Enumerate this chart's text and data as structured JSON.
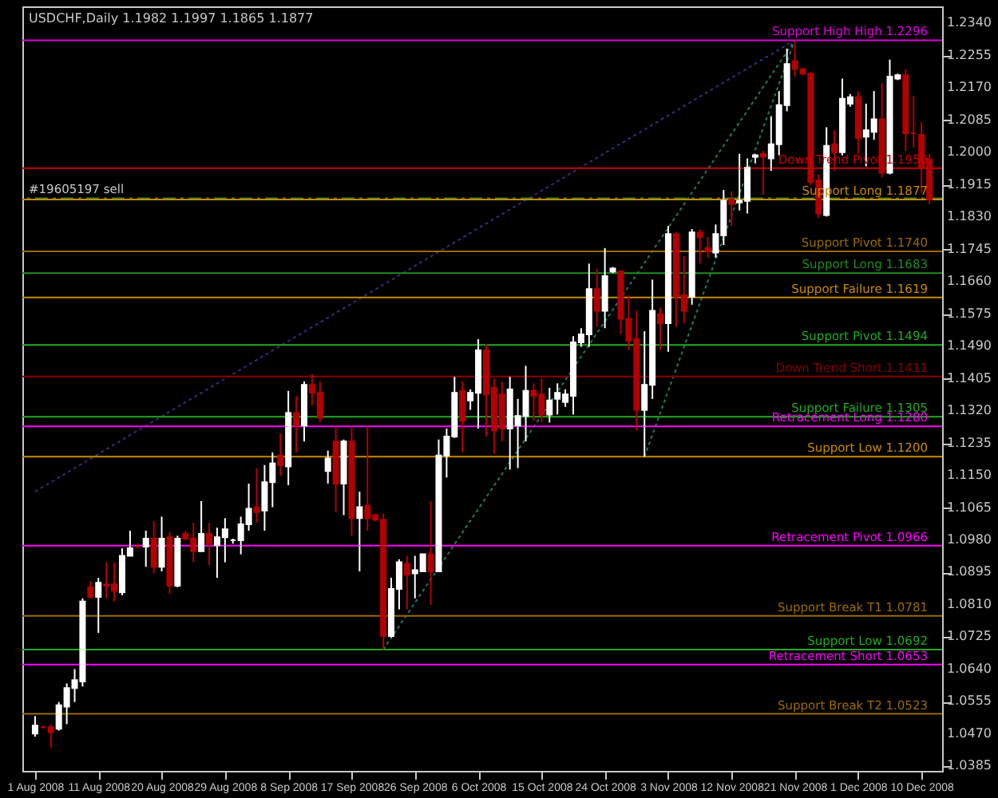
{
  "chart_data": {
    "type": "candlestick",
    "title": "USDCHF,Daily  1.1982 1.1997 1.1865 1.1877",
    "categories": [
      "1 Aug 2008",
      null,
      null,
      null,
      null,
      null,
      null,
      null,
      "11 Aug 2008",
      null,
      null,
      null,
      null,
      null,
      null,
      null,
      "20 Aug 2008",
      null,
      null,
      null,
      null,
      null,
      null,
      null,
      "29 Aug 2008",
      null,
      null,
      null,
      null,
      null,
      null,
      null,
      "8 Sep 2008",
      null,
      null,
      null,
      null,
      null,
      null,
      null,
      "17 Sep 2008",
      null,
      null,
      null,
      null,
      null,
      null,
      null,
      "26 Sep 2008",
      null,
      null,
      null,
      null,
      null,
      null,
      null,
      "6 Oct 2008",
      null,
      null,
      null,
      null,
      null,
      null,
      null,
      "15 Oct 2008",
      null,
      null,
      null,
      null,
      null,
      null,
      null,
      "24 Oct 2008",
      null,
      null,
      null,
      null,
      null,
      null,
      null,
      "3 Nov 2008",
      null,
      null,
      null,
      null,
      null,
      null,
      null,
      "12 Nov 2008",
      null,
      null,
      null,
      null,
      null,
      null,
      null,
      "21 Nov 2008",
      null,
      null,
      null,
      null,
      null,
      null,
      null,
      "1 Dec 2008",
      null,
      null,
      null,
      null,
      null,
      null,
      null,
      "10 Dec 2008",
      null
    ],
    "ohlc": [
      [
        1.0471,
        1.0517,
        1.0463,
        1.0492
      ],
      [
        1.0488,
        1.0492,
        1.0484,
        1.0488
      ],
      [
        1.0488,
        1.0496,
        1.0434,
        1.0475
      ],
      [
        1.0484,
        1.0554,
        1.0479,
        1.0546
      ],
      [
        1.0542,
        1.0603,
        1.0496,
        1.0591
      ],
      [
        1.0591,
        1.0641,
        1.0554,
        1.0612
      ],
      [
        1.0608,
        1.0827,
        1.0595,
        1.0819
      ],
      [
        1.0856,
        1.0872,
        1.0827,
        1.0831
      ],
      [
        1.0831,
        1.0881,
        1.0736,
        1.0868
      ],
      [
        1.0864,
        1.0922,
        1.0827,
        1.086
      ],
      [
        1.0864,
        1.0922,
        1.0819,
        1.0847
      ],
      [
        1.0843,
        1.0959,
        1.0835,
        1.0939
      ],
      [
        1.0939,
        1.1005,
        1.0939,
        1.0959
      ],
      [
        1.0963,
        1.0971,
        1.0959,
        1.0963
      ],
      [
        1.0963,
        1.1005,
        1.091,
        1.0984
      ],
      [
        1.0984,
        1.103,
        1.0893,
        1.091
      ],
      [
        1.091,
        1.1042,
        1.0898,
        1.0984
      ],
      [
        1.0988,
        1.1001,
        1.0839,
        1.086
      ],
      [
        1.086,
        1.0992,
        1.0856,
        1.0984
      ],
      [
        1.0997,
        1.1005,
        1.098,
        1.0984
      ],
      [
        1.0984,
        1.1026,
        1.0922,
        1.0951
      ],
      [
        1.0951,
        1.1083,
        1.0951,
        1.0997
      ],
      [
        1.0997,
        1.1026,
        1.0914,
        1.0971
      ],
      [
        1.0967,
        1.1013,
        1.0881,
        1.0988
      ],
      [
        1.0988,
        1.1038,
        1.0922,
        1.1009
      ],
      [
        1.098,
        1.0984,
        1.0971,
        1.098
      ],
      [
        1.098,
        1.1042,
        1.0943,
        1.1022
      ],
      [
        1.1022,
        1.1129,
        1.1005,
        1.1063
      ],
      [
        1.1067,
        1.117,
        1.1026,
        1.1054
      ],
      [
        1.1058,
        1.1178,
        1.1005,
        1.1133
      ],
      [
        1.1133,
        1.1211,
        1.1067,
        1.1182
      ],
      [
        1.1203,
        1.1261,
        1.115,
        1.1178
      ],
      [
        1.1174,
        1.1373,
        1.1125,
        1.1315
      ],
      [
        1.1315,
        1.136,
        1.1211,
        1.1282
      ],
      [
        1.1282,
        1.1398,
        1.124,
        1.1389
      ],
      [
        1.1389,
        1.1418,
        1.1335,
        1.1368
      ],
      [
        1.1368,
        1.1398,
        1.129,
        1.1302
      ],
      [
        1.1162,
        1.1216,
        1.1129,
        1.1195
      ],
      [
        1.124,
        1.1282,
        1.1054,
        1.1129
      ],
      [
        1.1129,
        1.1245,
        1.1046,
        1.124
      ],
      [
        1.124,
        1.1282,
        1.0992,
        1.1038
      ],
      [
        1.1038,
        1.1108,
        1.0898,
        1.1067
      ],
      [
        1.1071,
        1.1282,
        1.1005,
        1.1038
      ],
      [
        1.1046,
        1.105,
        1.103,
        1.1034
      ],
      [
        1.1034,
        1.105,
        1.0692,
        1.0728
      ],
      [
        1.0728,
        1.0881,
        1.0724,
        1.0852
      ],
      [
        1.0852,
        1.093,
        1.0798,
        1.0922
      ],
      [
        1.0918,
        1.0939,
        1.0798,
        1.0889
      ],
      [
        1.0893,
        1.0939,
        1.0827,
        1.0901
      ],
      [
        1.0898,
        1.0943,
        1.0898,
        1.0943
      ],
      [
        1.0943,
        1.1083,
        1.081,
        1.0898
      ],
      [
        1.0898,
        1.1245,
        1.0898,
        1.1203
      ],
      [
        1.1203,
        1.1274,
        1.1145,
        1.1253
      ],
      [
        1.1253,
        1.141,
        1.1249,
        1.1368
      ],
      [
        1.1373,
        1.1398,
        1.1211,
        1.1294
      ],
      [
        1.1348,
        1.1377,
        1.1323,
        1.1368
      ],
      [
        1.1368,
        1.1509,
        1.1274,
        1.148
      ],
      [
        1.148,
        1.1497,
        1.1253,
        1.1364
      ],
      [
        1.1381,
        1.1406,
        1.1207,
        1.1269
      ],
      [
        1.1364,
        1.1398,
        1.124,
        1.1274
      ],
      [
        1.1274,
        1.141,
        1.1166,
        1.1377
      ],
      [
        1.1282,
        1.1352,
        1.117,
        1.1307
      ],
      [
        1.1307,
        1.1439,
        1.124,
        1.1373
      ],
      [
        1.1373,
        1.1393,
        1.1294,
        1.136
      ],
      [
        1.1364,
        1.1406,
        1.129,
        1.1311
      ],
      [
        1.1311,
        1.1381,
        1.129,
        1.1348
      ],
      [
        1.1352,
        1.1393,
        1.1311,
        1.1368
      ],
      [
        1.1344,
        1.1377,
        1.1331,
        1.1364
      ],
      [
        1.136,
        1.1517,
        1.1311,
        1.1501
      ],
      [
        1.1501,
        1.1538,
        1.1489,
        1.1522
      ],
      [
        1.1522,
        1.1708,
        1.1489,
        1.1641
      ],
      [
        1.1641,
        1.1695,
        1.1542,
        1.1584
      ],
      [
        1.1584,
        1.1749,
        1.1538,
        1.1675
      ],
      [
        1.1687,
        1.1699,
        1.1683,
        1.1695
      ],
      [
        1.1687,
        1.1691,
        1.1522,
        1.1563
      ],
      [
        1.1563,
        1.1625,
        1.148,
        1.1505
      ],
      [
        1.1509,
        1.1584,
        1.1269,
        1.1323
      ],
      [
        1.1323,
        1.153,
        1.12,
        1.1389
      ],
      [
        1.1389,
        1.1666,
        1.1352,
        1.1584
      ],
      [
        1.1575,
        1.1592,
        1.148,
        1.1551
      ],
      [
        1.1551,
        1.1807,
        1.1476,
        1.1786
      ],
      [
        1.1786,
        1.179,
        1.1542,
        1.1621
      ],
      [
        1.1625,
        1.1728,
        1.1551,
        1.1584
      ],
      [
        1.1621,
        1.1799,
        1.16,
        1.179
      ],
      [
        1.179,
        1.1799,
        1.1708,
        1.1778
      ],
      [
        1.1749,
        1.1778,
        1.1724,
        1.1741
      ],
      [
        1.1737,
        1.1811,
        1.1724,
        1.1786
      ],
      [
        1.1782,
        1.1902,
        1.1757,
        1.1873
      ],
      [
        1.1877,
        1.1898,
        1.1807,
        1.1865
      ],
      [
        1.1869,
        1.1997,
        1.1848,
        1.1873
      ],
      [
        1.1873,
        1.1985,
        1.184,
        1.196
      ],
      [
        1.1989,
        1.1997,
        1.1972,
        1.1993
      ],
      [
        1.1997,
        1.2005,
        1.189,
        1.1989
      ],
      [
        1.1985,
        1.2096,
        1.1952,
        1.2022
      ],
      [
        1.2022,
        1.2162,
        1.1993,
        1.2125
      ],
      [
        1.2125,
        1.2274,
        1.2109,
        1.2233
      ],
      [
        1.2241,
        1.2296,
        1.22,
        1.222
      ],
      [
        1.222,
        1.222,
        1.2204,
        1.2208
      ],
      [
        1.2208,
        1.2212,
        1.1914,
        1.1923
      ],
      [
        1.1927,
        1.1943,
        1.1828,
        1.184
      ],
      [
        1.1836,
        1.2067,
        1.1832,
        1.2018
      ],
      [
        1.2022,
        1.2059,
        1.1952,
        1.2001
      ],
      [
        1.2001,
        1.2195,
        1.1993,
        1.2142
      ],
      [
        1.2129,
        1.2154,
        1.2121,
        1.2146
      ],
      [
        1.2146,
        1.2162,
        1.1997,
        1.2038
      ],
      [
        1.2042,
        1.2129,
        1.1964,
        1.2059
      ],
      [
        1.2055,
        1.2162,
        1.2034,
        1.2088
      ],
      [
        1.2088,
        1.2183,
        1.1935,
        1.1947
      ],
      [
        1.1947,
        1.2245,
        1.1943,
        1.22
      ],
      [
        1.2195,
        1.2208,
        1.2191,
        1.2204
      ],
      [
        1.2204,
        1.222,
        1.2005,
        1.2051
      ],
      [
        1.2051,
        1.215,
        1.2014,
        1.2051
      ],
      [
        1.2047,
        1.208,
        1.1894,
        1.196
      ],
      [
        1.1982,
        1.1997,
        1.1865,
        1.1877
      ]
    ],
    "colors": [
      "#ffffff",
      "#b40000",
      "#b40000",
      "#ffffff",
      "#ffffff",
      "#ffffff",
      "#ffffff",
      "#b40000",
      "#ffffff",
      "#b40000",
      "#b40000",
      "#ffffff",
      "#ffffff",
      "#b40000",
      "#ffffff",
      "#b40000",
      "#ffffff",
      "#b40000",
      "#ffffff",
      "#b40000",
      "#b40000",
      "#ffffff",
      "#b40000",
      "#ffffff",
      "#ffffff",
      "#ffffff",
      "#ffffff",
      "#ffffff",
      "#b40000",
      "#ffffff",
      "#ffffff",
      "#b40000",
      "#ffffff",
      "#b40000",
      "#ffffff",
      "#b40000",
      "#b40000",
      "#ffffff",
      "#b40000",
      "#ffffff",
      "#b40000",
      "#ffffff",
      "#b40000",
      "#b40000",
      "#b40000",
      "#ffffff",
      "#ffffff",
      "#b40000",
      "#ffffff",
      "#ffffff",
      "#b40000",
      "#ffffff",
      "#ffffff",
      "#ffffff",
      "#b40000",
      "#ffffff",
      "#ffffff",
      "#b40000",
      "#b40000",
      "#b40000",
      "#ffffff",
      "#ffffff",
      "#ffffff",
      "#b40000",
      "#b40000",
      "#ffffff",
      "#ffffff",
      "#ffffff",
      "#ffffff",
      "#ffffff",
      "#ffffff",
      "#b40000",
      "#ffffff",
      "#ffffff",
      "#b40000",
      "#b40000",
      "#b40000",
      "#ffffff",
      "#ffffff",
      "#b40000",
      "#ffffff",
      "#b40000",
      "#b40000",
      "#ffffff",
      "#b40000",
      "#b40000",
      "#ffffff",
      "#ffffff",
      "#b40000",
      "#ffffff",
      "#ffffff",
      "#ffffff",
      "#b40000",
      "#ffffff",
      "#ffffff",
      "#ffffff",
      "#b40000",
      "#b40000",
      "#b40000",
      "#b40000",
      "#ffffff",
      "#b40000",
      "#ffffff",
      "#ffffff",
      "#b40000",
      "#ffffff",
      "#ffffff",
      "#b40000",
      "#ffffff",
      "#ffffff",
      "#b40000",
      "#b40000",
      "#b40000",
      "#b40000"
    ],
    "series": [
      {
        "type": "line",
        "color": "#3c2a7a",
        "line_style": "dotted",
        "values": [
          1.1108,
          null,
          null,
          null,
          null,
          null,
          null,
          null,
          null,
          null,
          null,
          null,
          null,
          null,
          null,
          null,
          null,
          null,
          null,
          null,
          null,
          null,
          null,
          null,
          null,
          null,
          null,
          null,
          null,
          null,
          null,
          null,
          null,
          null,
          null,
          null,
          null,
          null,
          null,
          null,
          null,
          null,
          null,
          null,
          null,
          null,
          null,
          null,
          null,
          null,
          null,
          null,
          null,
          null,
          null,
          null,
          null,
          null,
          null,
          null,
          null,
          null,
          null,
          null,
          null,
          null,
          null,
          null,
          null,
          null,
          null,
          null,
          null,
          null,
          null,
          null,
          null,
          null,
          null,
          null,
          null,
          null,
          null,
          null,
          null,
          null,
          null,
          null,
          null,
          null,
          null,
          null,
          null,
          null,
          null,
          null,
          1.2296,
          null,
          null,
          null,
          null,
          null,
          null,
          null,
          null,
          null,
          null,
          null,
          null,
          null,
          null,
          null,
          null,
          null
        ]
      },
      {
        "type": "line",
        "color": "#1f7a66",
        "line_style": "dotted",
        "values": [
          null,
          null,
          null,
          null,
          null,
          null,
          null,
          null,
          null,
          null,
          null,
          null,
          null,
          null,
          null,
          null,
          null,
          null,
          null,
          null,
          null,
          null,
          null,
          null,
          null,
          null,
          null,
          null,
          null,
          null,
          null,
          null,
          null,
          null,
          null,
          null,
          null,
          null,
          null,
          null,
          null,
          null,
          null,
          null,
          1.0692,
          null,
          null,
          null,
          null,
          null,
          null,
          null,
          null,
          null,
          null,
          null,
          null,
          null,
          null,
          null,
          null,
          null,
          null,
          null,
          null,
          null,
          null,
          null,
          null,
          null,
          null,
          null,
          null,
          null,
          null,
          null,
          null,
          null,
          null,
          null,
          null,
          null,
          null,
          null,
          null,
          null,
          null,
          null,
          null,
          null,
          null,
          null,
          null,
          null,
          null,
          null,
          1.2296,
          null,
          null,
          null,
          null,
          null,
          null,
          null,
          null,
          null,
          null,
          null,
          null,
          null,
          null,
          null,
          null,
          null
        ]
      },
      {
        "type": "line",
        "color": "#1f7a66",
        "line_style": "dotted",
        "values": [
          null,
          null,
          null,
          null,
          null,
          null,
          null,
          null,
          null,
          null,
          null,
          null,
          null,
          null,
          null,
          null,
          null,
          null,
          null,
          null,
          null,
          null,
          null,
          null,
          null,
          null,
          null,
          null,
          null,
          null,
          null,
          null,
          null,
          null,
          null,
          null,
          null,
          null,
          null,
          null,
          null,
          null,
          null,
          null,
          null,
          null,
          null,
          null,
          null,
          null,
          null,
          null,
          null,
          null,
          null,
          null,
          null,
          null,
          null,
          null,
          null,
          null,
          null,
          null,
          null,
          null,
          null,
          null,
          null,
          null,
          null,
          null,
          null,
          null,
          null,
          null,
          null,
          1.12,
          null,
          null,
          null,
          null,
          null,
          null,
          null,
          null,
          null,
          null,
          null,
          null,
          null,
          null,
          null,
          null,
          null,
          null,
          1.2296,
          null,
          null,
          null,
          null,
          null,
          null,
          null,
          null,
          null,
          null,
          null,
          null,
          null,
          null,
          null,
          null,
          null
        ]
      }
    ],
    "ref_lines": [
      {
        "axis": "y",
        "value": 1.2296,
        "label": "Support High High  1.2296",
        "color": "#e000e0"
      },
      {
        "axis": "y",
        "value": 1.1959,
        "label": "Down Trend Pivot  1.1959",
        "color": "#c80000"
      },
      {
        "axis": "y",
        "value": 1.188,
        "label": "#19605197 sell",
        "color": "#2e8b2e",
        "line_style": "dashed"
      },
      {
        "axis": "y",
        "value": 1.1877,
        "label": "Support Long  1.1877",
        "color": "#c88a00"
      },
      {
        "axis": "y",
        "value": 1.174,
        "label": "Support  Pivot  1.1740",
        "color": "#9a6a00"
      },
      {
        "axis": "y",
        "value": 1.1683,
        "label": "Support Long  1.1683",
        "color": "#1e8c1e"
      },
      {
        "axis": "y",
        "value": 1.1619,
        "label": "Support Failure  1.1619",
        "color": "#c88a00"
      },
      {
        "axis": "y",
        "value": 1.1494,
        "label": "Support  Pivot  1.1494",
        "color": "#22aa22"
      },
      {
        "axis": "y",
        "value": 1.1411,
        "label": "Down Trend Short  1.1411",
        "color": "#8b0000"
      },
      {
        "axis": "y",
        "value": 1.1305,
        "label": "Support Failure  1.1305",
        "color": "#22aa22"
      },
      {
        "axis": "y",
        "value": 1.128,
        "label": "Retracement Long  1.1280",
        "color": "#ff00ff"
      },
      {
        "axis": "y",
        "value": 1.12,
        "label": "Support  Low  1.1200",
        "color": "#c88a00"
      },
      {
        "axis": "y",
        "value": 1.0966,
        "label": "Retracement Pivot  1.0966",
        "color": "#ff00ff"
      },
      {
        "axis": "y",
        "value": 1.0781,
        "label": "Support Break T1  1.0781",
        "color": "#9a6a00"
      },
      {
        "axis": "y",
        "value": 1.0692,
        "label": "Support  Low  1.0692",
        "color": "#22aa22"
      },
      {
        "axis": "y",
        "value": 1.0653,
        "label": "Retracement Short  1.0653",
        "color": "#ff00ff"
      },
      {
        "axis": "y",
        "value": 1.0523,
        "label": "Support Break T2  1.0523",
        "color": "#9a6a00"
      }
    ],
    "ylim": [
      1.0373,
      1.2385
    ],
    "yticks": [
      {
        "value": 1.234,
        "label": "1.2340"
      },
      1.2255,
      {
        "value": 1.217,
        "label": "1.2170"
      },
      1.2085,
      {
        "value": 1.2,
        "label": "1.2000"
      },
      1.1915,
      {
        "value": 1.183,
        "label": "1.1830"
      },
      1.1745,
      {
        "value": 1.166,
        "label": "1.1660"
      },
      1.1575,
      {
        "value": 1.149,
        "label": "1.1490"
      },
      1.1405,
      {
        "value": 1.132,
        "label": "1.1320"
      },
      1.1235,
      {
        "value": 1.115,
        "label": "1.1150"
      },
      1.1065,
      {
        "value": 1.098,
        "label": "1.0980"
      },
      1.0895,
      {
        "value": 1.081,
        "label": "1.0810"
      },
      1.0725,
      {
        "value": 1.064,
        "label": "1.0640"
      },
      1.0555,
      {
        "value": 1.047,
        "label": "1.0470"
      },
      1.0385
    ],
    "grid": false
  }
}
